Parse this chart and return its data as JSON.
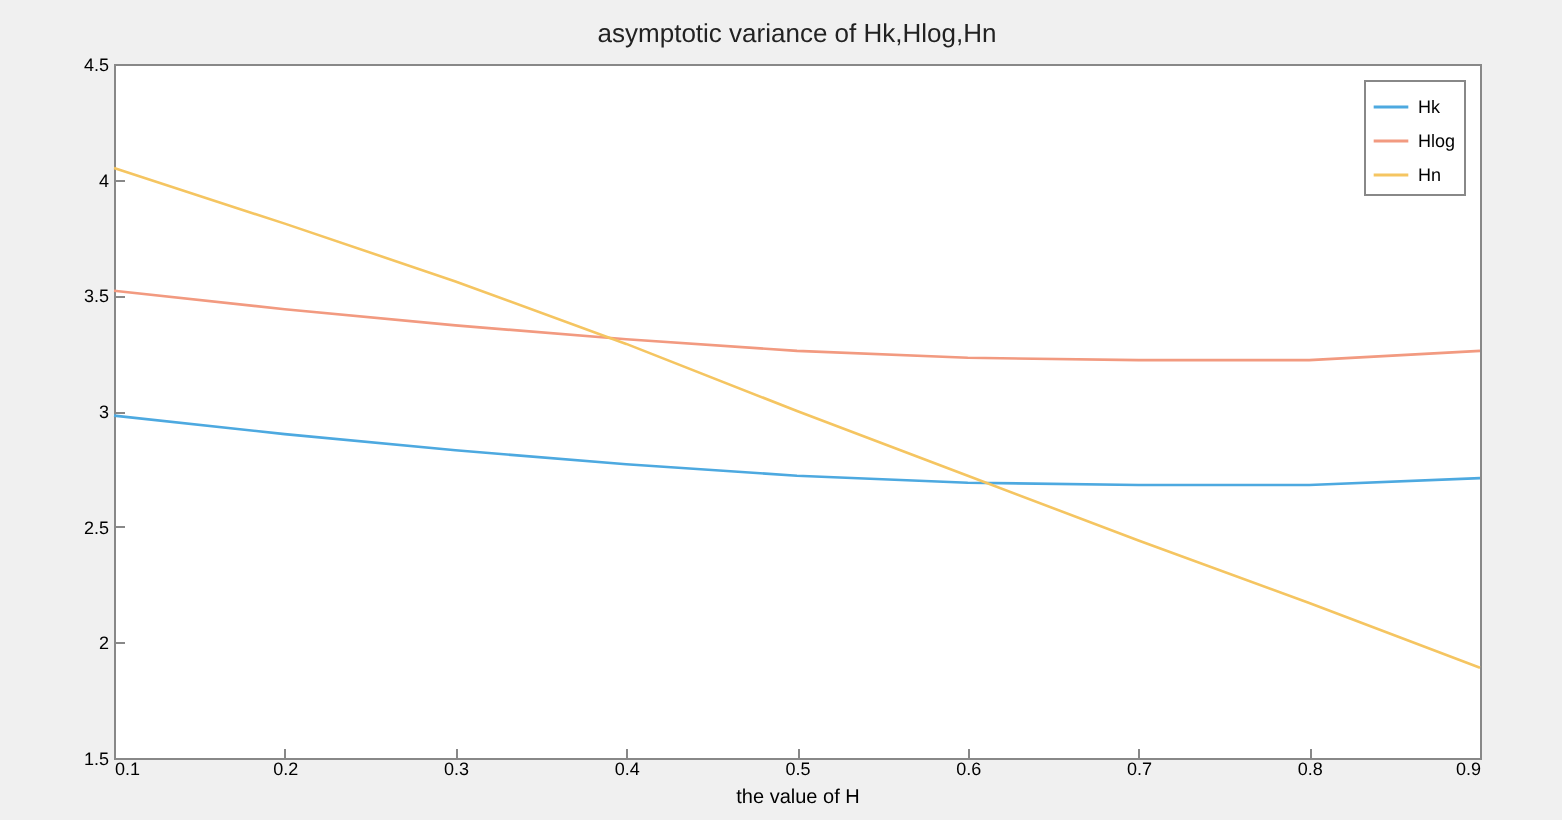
{
  "chart_data": {
    "type": "line",
    "title": "asymptotic variance of Hk,Hlog,Hn",
    "xlabel": "the value of H",
    "x": [
      0.1,
      0.2,
      0.3,
      0.4,
      0.5,
      0.6,
      0.7,
      0.8,
      0.9
    ],
    "series": [
      {
        "name": "Hk",
        "color": "#4da9e0",
        "values": [
          2.98,
          2.9,
          2.83,
          2.77,
          2.72,
          2.69,
          2.68,
          2.68,
          2.71
        ]
      },
      {
        "name": "Hlog",
        "color": "#f29a80",
        "values": [
          3.52,
          3.44,
          3.37,
          3.31,
          3.26,
          3.23,
          3.22,
          3.22,
          3.26
        ]
      },
      {
        "name": "Hn",
        "color": "#f5c561",
        "values": [
          4.05,
          3.81,
          3.56,
          3.29,
          3.0,
          2.72,
          2.44,
          2.17,
          1.89
        ]
      }
    ],
    "xlim": [
      0.1,
      0.9
    ],
    "xticks": [
      0.1,
      0.2,
      0.3,
      0.4,
      0.5,
      0.6,
      0.7,
      0.8,
      0.9
    ],
    "ylim": [
      1.5,
      4.5
    ],
    "yticks": [
      1.5,
      2,
      2.5,
      3,
      3.5,
      4,
      4.5
    ],
    "grid": false,
    "legend": "top right",
    "marker": "none",
    "line_style": "solid"
  }
}
